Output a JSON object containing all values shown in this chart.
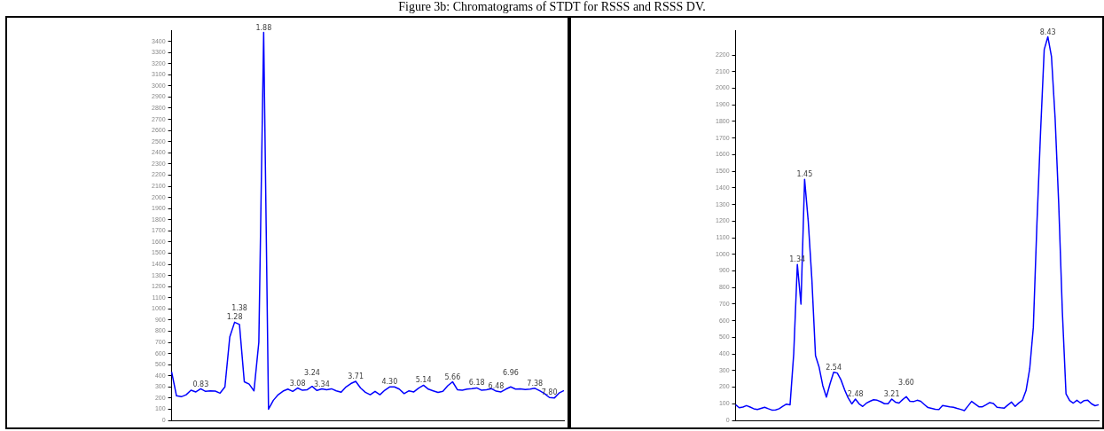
{
  "chart_data": [
    {
      "type": "line",
      "title": "Figure 3b: Chromatograms of STDT for RSSS and RSSS DV.",
      "marker": "none",
      "tick_labels": "y",
      "categories": [
        null,
        null,
        null,
        null,
        null,
        null,
        null,
        null,
        null,
        null,
        null,
        null,
        null,
        null,
        null,
        null,
        null,
        null,
        null,
        null,
        null,
        null,
        null,
        null,
        null,
        null,
        null,
        null,
        null,
        null,
        null,
        null,
        null,
        null,
        null,
        null,
        null,
        null,
        null,
        null,
        null,
        null,
        null,
        null,
        null,
        null,
        null,
        null,
        null,
        null,
        null,
        null,
        null,
        null,
        null,
        null,
        null,
        null,
        null,
        null,
        null,
        null,
        null,
        null,
        null,
        null,
        null,
        null,
        null,
        null,
        null,
        null,
        null,
        null,
        null,
        null,
        null,
        null,
        null,
        null,
        null,
        null
      ],
      "ylim": [
        0,
        3500
      ],
      "yticks": [
        0,
        100,
        200,
        300,
        400,
        500,
        600,
        700,
        800,
        900,
        1000,
        1100,
        1200,
        1300,
        1400,
        1500,
        1600,
        1700,
        1800,
        1900,
        2000,
        2100,
        2200,
        2300,
        2400,
        2500,
        2600,
        2700,
        2800,
        2900,
        3000,
        3100,
        3200,
        3300,
        3400
      ],
      "series": [
        {
          "color": "#0000ff",
          "values": [
            435,
            220,
            212,
            230,
            270,
            255,
            283,
            260,
            265,
            262,
            244,
            300,
            748,
            880,
            860,
            346,
            325,
            265,
            700,
            3480,
            100,
            180,
            230,
            262,
            280,
            260,
            290,
            270,
            275,
            305,
            268,
            283,
            275,
            283,
            265,
            252,
            300,
            330,
            350,
            290,
            252,
            230,
            260,
            230,
            270,
            300,
            300,
            280,
            240,
            265,
            255,
            290,
            315,
            280,
            265,
            250,
            260,
            310,
            346,
            275,
            270,
            280,
            285,
            291,
            270,
            275,
            285,
            262,
            255,
            280,
            300,
            280,
            282,
            276,
            280,
            288,
            265,
            240,
            205,
            200,
            245,
            268
          ]
        }
      ],
      "annotations": [
        {
          "text": "0.83",
          "y": 283
        },
        {
          "text": "1.28",
          "y": 880
        },
        {
          "text": "1.38",
          "y": 860
        },
        {
          "text": "1.88",
          "y": 3480
        },
        {
          "text": "3.08",
          "y": 290
        },
        {
          "text": "3.24",
          "y": 305
        },
        {
          "text": "3.34",
          "y": 283
        },
        {
          "text": "3.71",
          "y": 350
        },
        {
          "text": "4.30",
          "y": 300
        },
        {
          "text": "5.14",
          "y": 315
        },
        {
          "text": "5.66",
          "y": 346
        },
        {
          "text": "6.18",
          "y": 291
        },
        {
          "text": "6.48",
          "y": 262
        },
        {
          "text": "6.96",
          "y": 300
        },
        {
          "text": "7.38",
          "y": 288
        },
        {
          "text": "7.80",
          "y": 205
        }
      ]
    },
    {
      "type": "line",
      "marker": "none",
      "tick_labels": "y",
      "categories": [
        null,
        null,
        null,
        null,
        null,
        null,
        null,
        null,
        null,
        null,
        null,
        null,
        null,
        null,
        null,
        null,
        null,
        null,
        null,
        null,
        null,
        null,
        null,
        null,
        null,
        null,
        null,
        null,
        null,
        null,
        null,
        null,
        null,
        null,
        null,
        null,
        null,
        null,
        null,
        null,
        null,
        null,
        null,
        null,
        null,
        null,
        null,
        null,
        null,
        null,
        null,
        null,
        null,
        null,
        null,
        null,
        null,
        null,
        null,
        null,
        null,
        null,
        null,
        null,
        null,
        null,
        null,
        null,
        null,
        null,
        null,
        null,
        null,
        null,
        null,
        null,
        null,
        null,
        null,
        null,
        null,
        null,
        null,
        null,
        null,
        null,
        null,
        null,
        null,
        null,
        null,
        null,
        null,
        null,
        null,
        null,
        null,
        null,
        null,
        null,
        null
      ],
      "ylim": [
        0,
        2350
      ],
      "yticks": [
        0,
        100,
        200,
        300,
        400,
        500,
        600,
        700,
        800,
        900,
        1000,
        1100,
        1200,
        1300,
        1400,
        1500,
        1600,
        1700,
        1800,
        1900,
        2000,
        2100,
        2200
      ],
      "series": [
        {
          "color": "#0000ff",
          "values": [
            94,
            76,
            80,
            89,
            80,
            70,
            65,
            72,
            79,
            70,
            62,
            63,
            70,
            85,
            98,
            94,
            400,
            939,
            700,
            1452,
            1200,
            850,
            390,
            320,
            210,
            140,
            220,
            290,
            285,
            245,
            185,
            135,
            99,
            128,
            100,
            84,
            103,
            115,
            124,
            121,
            112,
            100,
            100,
            128,
            110,
            104,
            125,
            143,
            115,
            113,
            121,
            115,
            95,
            77,
            72,
            67,
            66,
            89,
            86,
            82,
            79,
            72,
            66,
            59,
            86,
            114,
            98,
            82,
            82,
            94,
            107,
            102,
            79,
            76,
            74,
            93,
            110,
            84,
            105,
            121,
            180,
            310,
            560,
            1190,
            1740,
            2233,
            2310,
            2190,
            1820,
            1300,
            652,
            160,
            119,
            104,
            121,
            104,
            119,
            121,
            100,
            88,
            94
          ]
        }
      ],
      "annotations": [
        {
          "text": "1.34",
          "y": 939
        },
        {
          "text": "1.45",
          "y": 1452
        },
        {
          "text": "2.54",
          "y": 290
        },
        {
          "text": "2.48",
          "y": 128
        },
        {
          "text": "3.21",
          "y": 128
        },
        {
          "text": "3.60",
          "y": 143
        },
        {
          "text": "8.43",
          "y": 2310
        }
      ]
    }
  ]
}
